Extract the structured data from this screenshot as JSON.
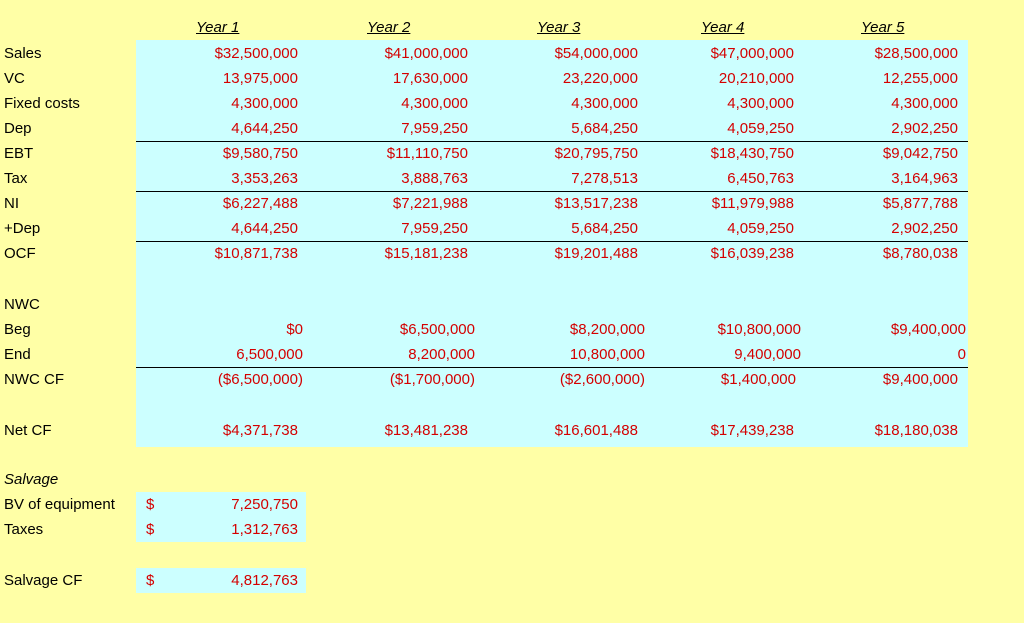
{
  "columns": [
    "Year 1",
    "Year 2",
    "Year 3",
    "Year 4",
    "Year 5"
  ],
  "rows": [
    {
      "label": "Sales",
      "values": [
        "$32,500,000",
        "$41,000,000",
        "$54,000,000",
        "$47,000,000",
        "$28,500,000"
      ]
    },
    {
      "label": "VC",
      "values": [
        "13,975,000",
        "17,630,000",
        "23,220,000",
        "20,210,000",
        "12,255,000"
      ]
    },
    {
      "label": "Fixed costs",
      "values": [
        "4,300,000",
        "4,300,000",
        "4,300,000",
        "4,300,000",
        "4,300,000"
      ]
    },
    {
      "label": "Dep",
      "values": [
        "4,644,250",
        "7,959,250",
        "5,684,250",
        "4,059,250",
        "2,902,250"
      ]
    },
    {
      "label": "EBT",
      "values": [
        "$9,580,750",
        "$11,110,750",
        "$20,795,750",
        "$18,430,750",
        "$9,042,750"
      ]
    },
    {
      "label": "Tax",
      "values": [
        "3,353,263",
        "3,888,763",
        "7,278,513",
        "6,450,763",
        "3,164,963"
      ]
    },
    {
      "label": "NI",
      "values": [
        "$6,227,488",
        "$7,221,988",
        "$13,517,238",
        "$11,979,988",
        "$5,877,788"
      ]
    },
    {
      "label": "+Dep",
      "values": [
        "4,644,250",
        "7,959,250",
        "5,684,250",
        "4,059,250",
        "2,902,250"
      ]
    },
    {
      "label": "OCF",
      "values": [
        "$10,871,738",
        "$15,181,238",
        "$19,201,488",
        "$16,039,238",
        "$8,780,038"
      ]
    },
    {
      "label": "NWC",
      "values": [
        "",
        "",
        "",
        "",
        ""
      ]
    },
    {
      "label": "Beg",
      "values": [
        "$0",
        "$6,500,000",
        "$8,200,000",
        "$10,800,000",
        "$9,400,000"
      ]
    },
    {
      "label": "End",
      "values": [
        "6,500,000",
        "8,200,000",
        "10,800,000",
        "9,400,000",
        "0"
      ]
    },
    {
      "label": "NWC CF",
      "values": [
        "($6,500,000)",
        "($1,700,000)",
        "($2,600,000)",
        "$1,400,000",
        "$9,400,000"
      ]
    },
    {
      "label": "Net CF",
      "values": [
        "$4,371,738",
        "$13,481,238",
        "$16,601,488",
        "$17,439,238",
        "$18,180,038"
      ]
    }
  ],
  "salvage": {
    "title": "Salvage",
    "rows": [
      {
        "label": "BV of equipment",
        "currency": "$",
        "value": "7,250,750"
      },
      {
        "label": "Taxes",
        "currency": "$",
        "value": "1,312,763"
      },
      {
        "label": "Salvage CF",
        "currency": "$",
        "value": "4,812,763"
      }
    ]
  }
}
